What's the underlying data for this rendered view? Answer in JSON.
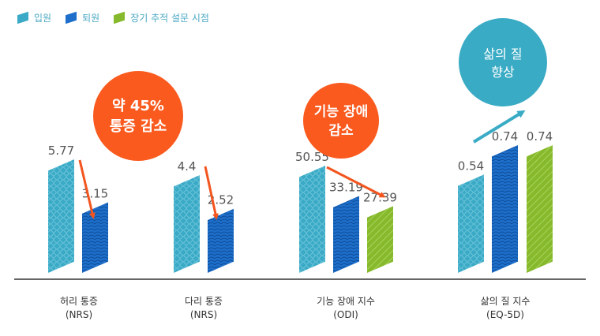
{
  "colors": {
    "admission": "#3aaac6",
    "discharge": "#1d6fcb",
    "followup": "#86ba2c",
    "accent_orange": "#fa5a1e",
    "accent_teal": "#3aabc5",
    "arrow_orange": "#f3551f",
    "arrow_teal": "#3aabc5",
    "axis": "#666666",
    "value_text": "#555555"
  },
  "legend": [
    {
      "label": "입원",
      "color_key": "admission"
    },
    {
      "label": "퇴원",
      "color_key": "discharge"
    },
    {
      "label": "장기 추적 설문 시점",
      "color_key": "followup"
    }
  ],
  "callouts": {
    "pain": {
      "line1": "약 45%",
      "line2": "통증 감소"
    },
    "function": {
      "line1": "기능 장애",
      "line2": "감소"
    },
    "quality": {
      "line1": "삶의 질",
      "line2": "향상"
    }
  },
  "chart_data": {
    "type": "bar",
    "series": [
      {
        "name": "입원",
        "key": "admission"
      },
      {
        "name": "퇴원",
        "key": "discharge"
      },
      {
        "name": "장기 추적 설문 시점",
        "key": "followup"
      }
    ],
    "groups": [
      {
        "id": "back",
        "label": "허리 통증",
        "sublabel": "(NRS)",
        "values": [
          {
            "series": "admission",
            "value": 5.77,
            "label": "5.77"
          },
          {
            "series": "discharge",
            "value": 3.15,
            "label": "3.15"
          }
        ]
      },
      {
        "id": "leg",
        "label": "다리 통증",
        "sublabel": "(NRS)",
        "values": [
          {
            "series": "admission",
            "value": 4.4,
            "label": "4.4"
          },
          {
            "series": "discharge",
            "value": 2.52,
            "label": "2.52"
          }
        ]
      },
      {
        "id": "odi",
        "label": "기능 장애 지수",
        "sublabel": "(ODI)",
        "values": [
          {
            "series": "admission",
            "value": 50.55,
            "label": "50.55"
          },
          {
            "series": "discharge",
            "value": 33.19,
            "label": "33.19"
          },
          {
            "series": "followup",
            "value": 27.39,
            "label": "27.39"
          }
        ]
      },
      {
        "id": "eq5d",
        "label": "삶의 질 지수",
        "sublabel": "(EQ-5D)",
        "values": [
          {
            "series": "admission",
            "value": 0.54,
            "label": "0.54"
          },
          {
            "series": "discharge",
            "value": 0.74,
            "label": "0.74"
          },
          {
            "series": "followup",
            "value": 0.74,
            "label": "0.74"
          }
        ]
      }
    ]
  }
}
